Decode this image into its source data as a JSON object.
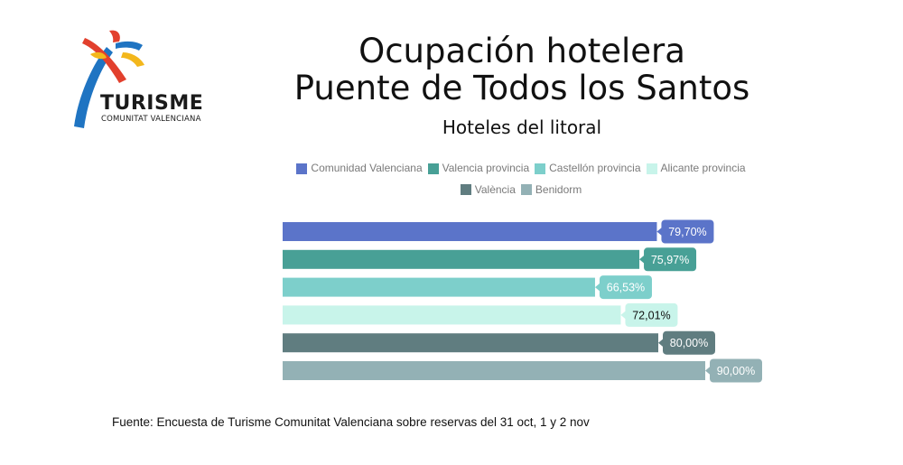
{
  "logo": {
    "word": "TURISME",
    "sub": "COMUNITAT VALENCIANA"
  },
  "header": {
    "title_line1": "Ocupación hotelera",
    "title_line2": "Puente de Todos los Santos",
    "subtitle": "Hoteles del litoral"
  },
  "chart_data": {
    "type": "bar",
    "orientation": "horizontal",
    "title": "Ocupación hotelera Puente de Todos los Santos",
    "subtitle": "Hoteles del litoral",
    "categories": [
      "Comunidad Valenciana",
      "Valencia provincia",
      "Castellón provincia",
      "Alicante provincia",
      "València",
      "Benidorm"
    ],
    "series": [
      {
        "name": "Comunidad Valenciana",
        "value": 79.7,
        "label": "79,70%",
        "color": "#5b74c9",
        "label_text_color": "#ffffff"
      },
      {
        "name": "Valencia provincia",
        "value": 75.97,
        "label": "75,97%",
        "color": "#48a096",
        "label_text_color": "#ffffff"
      },
      {
        "name": "Castellón provincia",
        "value": 66.53,
        "label": "66,53%",
        "color": "#7dcfcb",
        "label_text_color": "#ffffff"
      },
      {
        "name": "Alicante provincia",
        "value": 72.01,
        "label": "72,01%",
        "color": "#c8f4ea",
        "label_text_color": "#111111"
      },
      {
        "name": "València",
        "value": 80.0,
        "label": "80,00%",
        "color": "#607d80",
        "label_text_color": "#ffffff"
      },
      {
        "name": "Benidorm",
        "value": 90.0,
        "label": "90,00%",
        "color": "#93b1b5",
        "label_text_color": "#ffffff"
      }
    ],
    "xlim": [
      0,
      100
    ],
    "legend_position": "top",
    "grid": false,
    "axes_visible": false
  },
  "footer": {
    "source": "Fuente: Encuesta de Turisme Comunitat Valenciana sobre reservas del 31 oct, 1 y 2 nov"
  }
}
